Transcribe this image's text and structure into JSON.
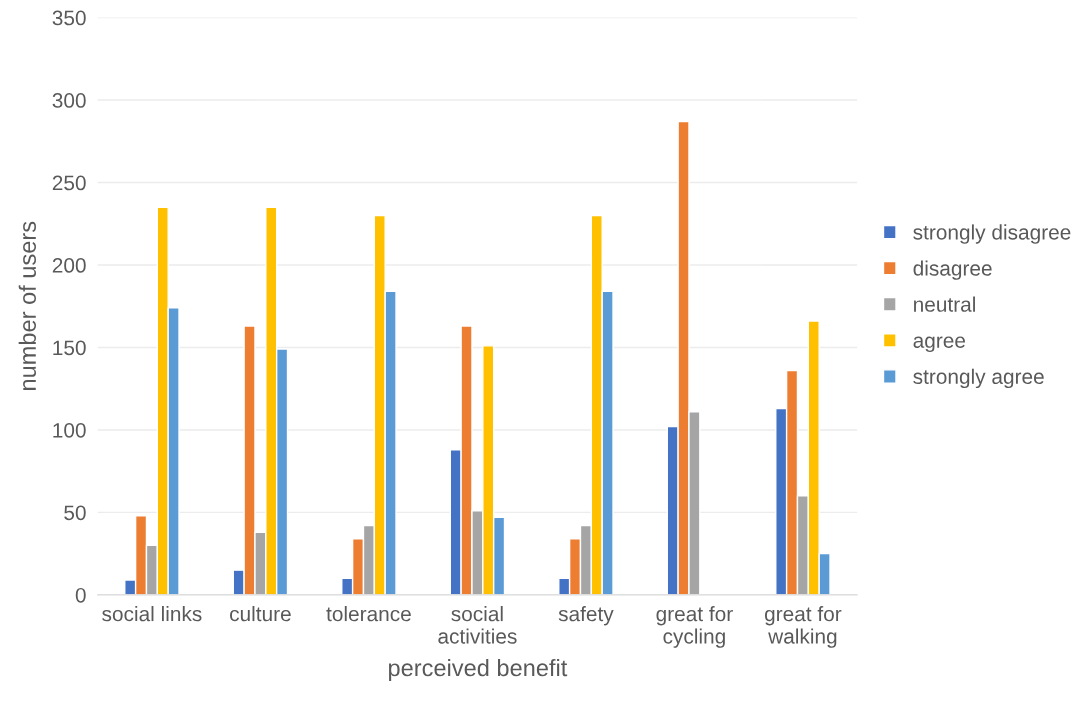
{
  "chart_data": {
    "type": "bar",
    "xlabel": "perceived benefit",
    "ylabel": "number of users",
    "categories": [
      "social links",
      "culture",
      "tolerance",
      "social\nactivities",
      "safety",
      "great for\ncycling",
      "great for\nwalking"
    ],
    "series": [
      {
        "name": "strongly disagree",
        "color": "#4472c4",
        "values": [
          9,
          15,
          10,
          88,
          10,
          102,
          113
        ]
      },
      {
        "name": "disagree",
        "color": "#ed7d31",
        "values": [
          48,
          163,
          34,
          163,
          34,
          287,
          136
        ]
      },
      {
        "name": "neutral",
        "color": "#a5a5a5",
        "values": [
          30,
          38,
          42,
          51,
          42,
          111,
          60
        ]
      },
      {
        "name": "agree",
        "color": "#ffc000",
        "values": [
          235,
          235,
          230,
          151,
          230,
          null,
          166
        ]
      },
      {
        "name": "strongly agree",
        "color": "#5b9bd5",
        "values": [
          174,
          149,
          184,
          47,
          184,
          null,
          25
        ]
      }
    ],
    "ylim": [
      0,
      350
    ],
    "yticks": [
      0,
      50,
      100,
      150,
      200,
      250,
      300,
      350
    ],
    "grid": "y",
    "legend": "right"
  }
}
